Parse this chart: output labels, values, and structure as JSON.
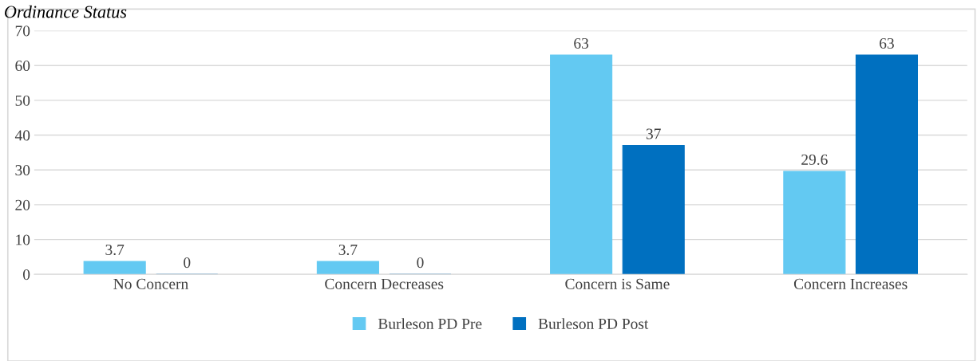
{
  "chart_data": {
    "type": "bar",
    "title": "Ordinance Status",
    "categories": [
      "No Concern",
      "Concern Decreases",
      "Concern is Same",
      "Concern Increases"
    ],
    "series": [
      {
        "name": "Burleson PD Pre",
        "color": "#63c9f2",
        "values": [
          3.7,
          3.7,
          63,
          29.6
        ]
      },
      {
        "name": "Burleson PD Post",
        "color": "#0070c0",
        "values": [
          0,
          0,
          37,
          63
        ]
      }
    ],
    "ylim": [
      0,
      70
    ],
    "yticks": [
      0,
      10,
      20,
      30,
      40,
      50,
      60,
      70
    ],
    "grid": "y",
    "legend": "bottom",
    "data_labels": true
  }
}
